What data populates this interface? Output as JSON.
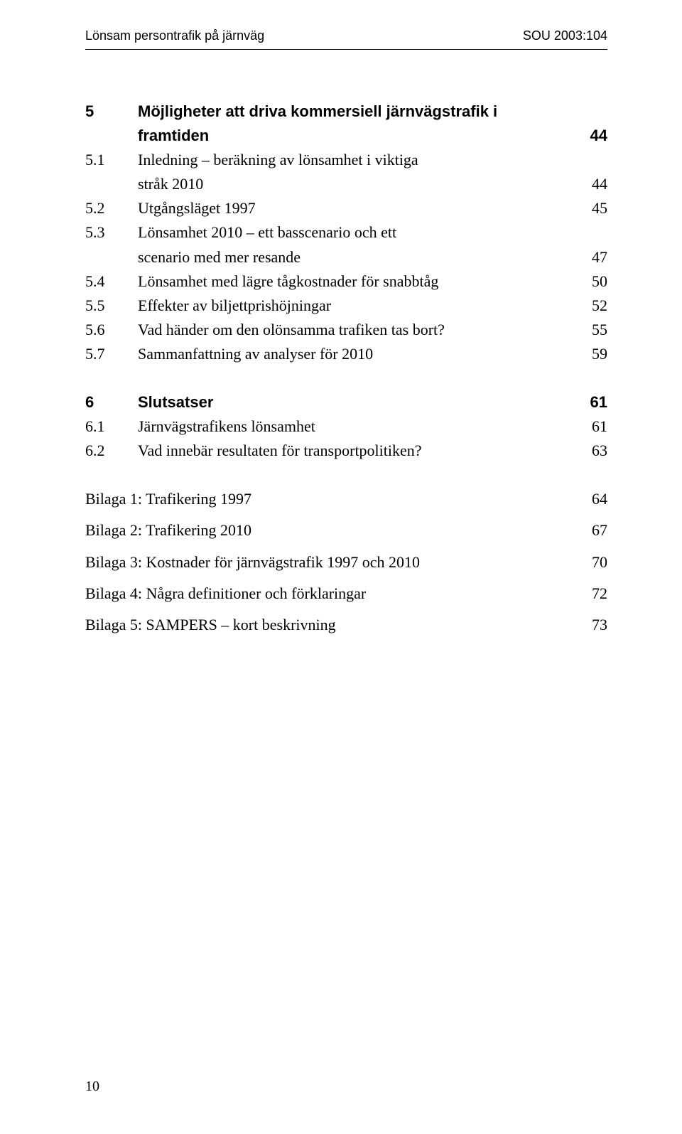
{
  "header": {
    "left": "Lönsam persontrafik på järnväg",
    "right": "SOU 2003:104"
  },
  "sections": [
    {
      "num": "5",
      "title_lines": [
        "Möjligheter att driva kommersiell järnvägstrafik i",
        "framtiden"
      ],
      "page": "44",
      "bold": true,
      "subs": [
        {
          "num": "5.1",
          "title_lines": [
            "Inledning – beräkning av lönsamhet i viktiga",
            "stråk 2010"
          ],
          "page": "44"
        },
        {
          "num": "5.2",
          "title_lines": [
            "Utgångsläget 1997"
          ],
          "page": "45"
        },
        {
          "num": "5.3",
          "title_lines": [
            "Lönsamhet 2010 – ett basscenario och ett",
            "scenario med mer resande"
          ],
          "page": "47"
        },
        {
          "num": "5.4",
          "title_lines": [
            "Lönsamhet med lägre tågkostnader för snabbtåg"
          ],
          "page": "50"
        },
        {
          "num": "5.5",
          "title_lines": [
            "Effekter av biljettprishöjningar"
          ],
          "page": "52"
        },
        {
          "num": "5.6",
          "title_lines": [
            "Vad händer om den olönsamma trafiken tas bort?"
          ],
          "page": "55"
        },
        {
          "num": "5.7",
          "title_lines": [
            "Sammanfattning av analyser för 2010"
          ],
          "page": "59"
        }
      ]
    },
    {
      "num": "6",
      "title_lines": [
        "Slutsatser"
      ],
      "page": "61",
      "bold": true,
      "subs": [
        {
          "num": "6.1",
          "title_lines": [
            "Järnvägstrafikens lönsamhet"
          ],
          "page": "61"
        },
        {
          "num": "6.2",
          "title_lines": [
            "Vad innebär resultaten för transportpolitiken?"
          ],
          "page": "63"
        }
      ]
    }
  ],
  "appendices": [
    {
      "label": "Bilaga 1: Trafikering 1997",
      "page": "64"
    },
    {
      "label": "Bilaga 2: Trafikering 2010",
      "page": "67"
    },
    {
      "label": "Bilaga 3: Kostnader för järnvägstrafik 1997 och 2010",
      "page": "70"
    },
    {
      "label": "Bilaga 4: Några definitioner och förklaringar",
      "page": "72"
    },
    {
      "label": "Bilaga 5: SAMPERS – kort beskrivning",
      "page": "73"
    }
  ],
  "footer_page": "10"
}
